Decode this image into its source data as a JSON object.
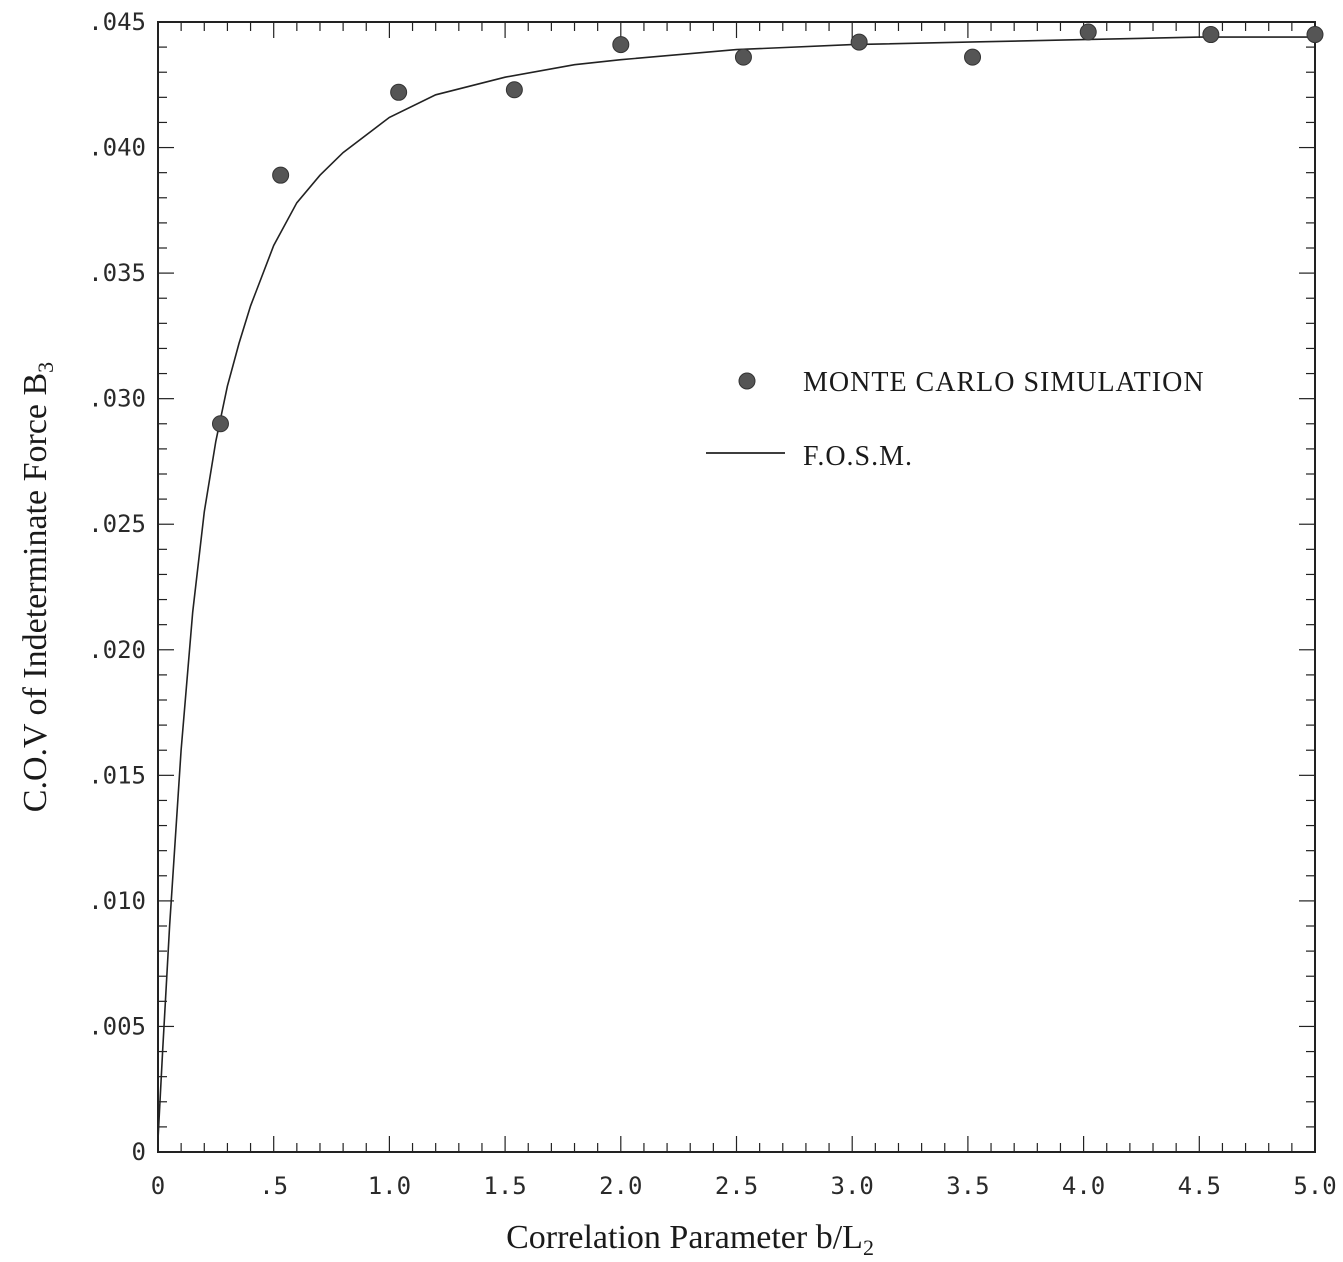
{
  "chart_data": {
    "type": "scatter",
    "xlabel": "Correlation Parameter b/L",
    "xlabel_subscript": "2",
    "ylabel": "C.O.V of Indeterminate Force B",
    "ylabel_subscript": "3",
    "xlim": [
      0,
      5.0
    ],
    "ylim": [
      0,
      0.045
    ],
    "x_ticks": [
      0,
      0.5,
      1.0,
      1.5,
      2.0,
      2.5,
      3.0,
      3.5,
      4.0,
      4.5,
      5.0
    ],
    "x_tick_labels": [
      "0",
      ".5",
      "1.0",
      "1.5",
      "2.0",
      "2.5",
      "3.0",
      "3.5",
      "4.0",
      "4.5",
      "5.0"
    ],
    "y_ticks": [
      0,
      0.005,
      0.01,
      0.015,
      0.02,
      0.025,
      0.03,
      0.035,
      0.04,
      0.045
    ],
    "y_tick_labels": [
      "0",
      ".005",
      ".010",
      ".015",
      ".020",
      ".025",
      ".030",
      ".035",
      ".040",
      ".045"
    ],
    "grid": false,
    "legend_position": "right-middle",
    "series": [
      {
        "name": "MONTE CARLO SIMULATION",
        "kind": "scatter",
        "color": "#555555",
        "x": [
          0.27,
          0.53,
          1.04,
          1.54,
          2.0,
          2.53,
          3.03,
          3.52,
          4.02,
          4.55,
          5.0
        ],
        "y": [
          0.029,
          0.0389,
          0.0422,
          0.0423,
          0.0441,
          0.0436,
          0.0442,
          0.0436,
          0.0446,
          0.0445,
          0.0445
        ]
      },
      {
        "name": "F.O.S.M.",
        "kind": "line",
        "color": "#222222",
        "x": [
          0,
          0.02,
          0.05,
          0.1,
          0.15,
          0.2,
          0.25,
          0.3,
          0.35,
          0.4,
          0.5,
          0.6,
          0.7,
          0.8,
          1.0,
          1.2,
          1.5,
          1.8,
          2.0,
          2.5,
          3.0,
          3.5,
          4.0,
          4.5,
          5.0
        ],
        "y": [
          0.0005,
          0.004,
          0.009,
          0.016,
          0.0215,
          0.0255,
          0.0283,
          0.0305,
          0.0322,
          0.0337,
          0.0361,
          0.0378,
          0.0389,
          0.0398,
          0.0412,
          0.0421,
          0.0428,
          0.0433,
          0.0435,
          0.0439,
          0.0441,
          0.0442,
          0.0443,
          0.0444,
          0.0444
        ]
      }
    ]
  }
}
